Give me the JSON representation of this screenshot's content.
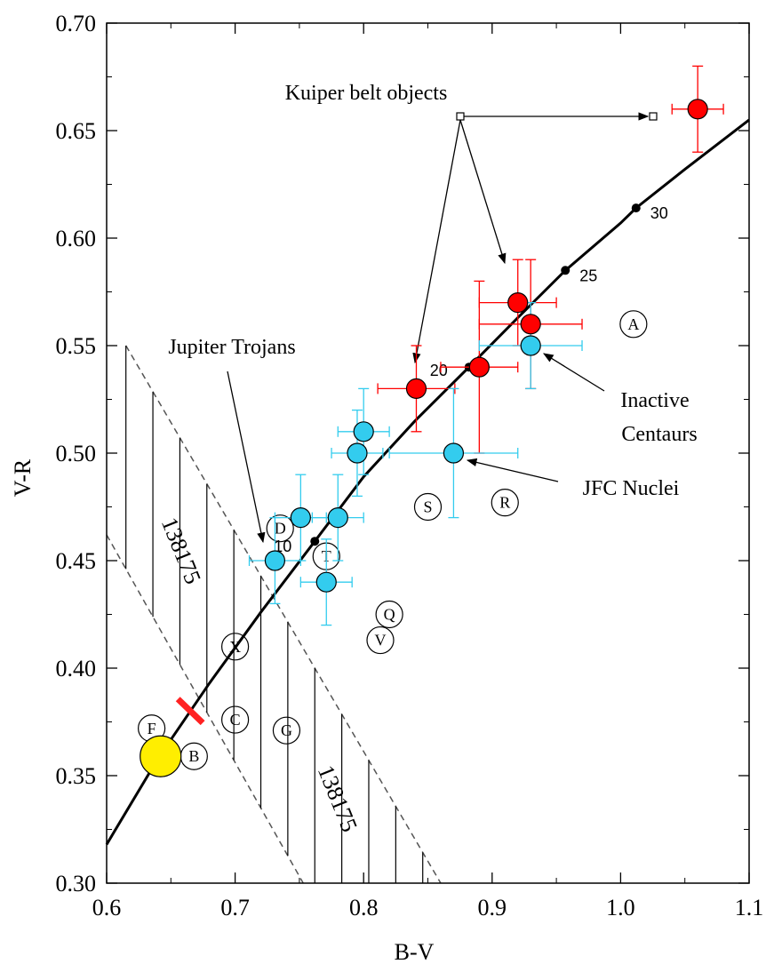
{
  "chart_data": {
    "type": "scatter",
    "xlabel": "B-V",
    "ylabel": "V-R",
    "xlim": [
      0.6,
      1.1
    ],
    "ylim": [
      0.3,
      0.7
    ],
    "x_ticks": [
      "0.6",
      "0.7",
      "0.8",
      "0.9",
      "1.0",
      "1.1"
    ],
    "y_ticks": [
      "0.30",
      "0.35",
      "0.40",
      "0.45",
      "0.50",
      "0.55",
      "0.60",
      "0.65",
      "0.70"
    ],
    "x_tick_values": [
      0.6,
      0.7,
      0.8,
      0.9,
      1.0,
      1.1
    ],
    "y_tick_values": [
      0.3,
      0.35,
      0.4,
      0.45,
      0.5,
      0.55,
      0.6,
      0.65,
      0.7
    ],
    "grid": false,
    "colors": {
      "kbo": "#ff0000",
      "cyan": "#33ccee",
      "sun": "#ffee00",
      "segment": "#ff2222",
      "curve": "#000000"
    },
    "series": [
      {
        "group": "red",
        "points": [
          {
            "x": 0.841,
            "y": 0.53,
            "xerr": 0.03,
            "yerr": 0.02
          },
          {
            "x": 0.89,
            "y": 0.54,
            "xerr": 0.03,
            "yerr": 0.04
          },
          {
            "x": 0.92,
            "y": 0.57,
            "xerr": 0.03,
            "yerr": 0.02
          },
          {
            "x": 0.93,
            "y": 0.56,
            "xerr": 0.04,
            "yerr": 0.03
          },
          {
            "x": 1.06,
            "y": 0.66,
            "xerr": 0.02,
            "yerr": 0.02
          }
        ]
      },
      {
        "group": "cyan",
        "points": [
          {
            "x": 0.731,
            "y": 0.45,
            "xerr": 0.02,
            "yerr": 0.02
          },
          {
            "x": 0.751,
            "y": 0.47,
            "xerr": 0.02,
            "yerr": 0.02
          },
          {
            "x": 0.771,
            "y": 0.44,
            "xerr": 0.02,
            "yerr": 0.02
          },
          {
            "x": 0.78,
            "y": 0.47,
            "xerr": 0.02,
            "yerr": 0.02
          },
          {
            "x": 0.795,
            "y": 0.5,
            "xerr": 0.02,
            "yerr": 0.02
          },
          {
            "x": 0.8,
            "y": 0.51,
            "xerr": 0.02,
            "yerr": 0.02
          },
          {
            "x": 0.87,
            "y": 0.5,
            "xerr": 0.05,
            "yerr": 0.03
          },
          {
            "x": 0.93,
            "y": 0.55,
            "xerr": 0.04,
            "yerr": 0.02
          }
        ]
      }
    ],
    "sun": {
      "x": 0.642,
      "y": 0.359
    },
    "red_segment": [
      {
        "x": 0.661,
        "y": 0.384
      },
      {
        "x": 0.672,
        "y": 0.377
      }
    ],
    "reddening_curve": [
      {
        "x": 0.6,
        "y": 0.318
      },
      {
        "x": 0.64,
        "y": 0.358
      },
      {
        "x": 0.68,
        "y": 0.393
      },
      {
        "x": 0.72,
        "y": 0.426
      },
      {
        "x": 0.762,
        "y": 0.459
      },
      {
        "x": 0.8,
        "y": 0.489
      },
      {
        "x": 0.84,
        "y": 0.515
      },
      {
        "x": 0.882,
        "y": 0.54
      },
      {
        "x": 0.92,
        "y": 0.563
      },
      {
        "x": 0.957,
        "y": 0.585
      },
      {
        "x": 1.0,
        "y": 0.607
      },
      {
        "x": 1.012,
        "y": 0.614
      },
      {
        "x": 1.05,
        "y": 0.632
      },
      {
        "x": 1.1,
        "y": 0.655
      }
    ],
    "track_markers": [
      {
        "label": "10",
        "x": 0.762,
        "y": 0.459
      },
      {
        "label": "20",
        "x": 0.882,
        "y": 0.54
      },
      {
        "label": "25",
        "x": 0.957,
        "y": 0.585
      },
      {
        "label": "30",
        "x": 1.012,
        "y": 0.614
      }
    ],
    "class_labels": [
      {
        "label": "A",
        "x": 1.01,
        "y": 0.56
      },
      {
        "label": "S",
        "x": 0.85,
        "y": 0.475
      },
      {
        "label": "R",
        "x": 0.91,
        "y": 0.477
      },
      {
        "label": "D",
        "x": 0.735,
        "y": 0.465
      },
      {
        "label": "T",
        "x": 0.771,
        "y": 0.452
      },
      {
        "label": "Q",
        "x": 0.82,
        "y": 0.425
      },
      {
        "label": "V",
        "x": 0.813,
        "y": 0.413
      },
      {
        "label": "X",
        "x": 0.7,
        "y": 0.41
      },
      {
        "label": "C",
        "x": 0.7,
        "y": 0.376
      },
      {
        "label": "G",
        "x": 0.74,
        "y": 0.371
      },
      {
        "label": "F",
        "x": 0.635,
        "y": 0.372
      },
      {
        "label": "B",
        "x": 0.668,
        "y": 0.359
      }
    ],
    "region_138175": {
      "upper_line": [
        {
          "x": 0.615,
          "y": 0.55
        },
        {
          "x": 0.86,
          "y": 0.3
        }
      ],
      "lower_line": [
        {
          "x": 0.6,
          "y": 0.462
        },
        {
          "x": 0.753,
          "y": 0.3
        }
      ],
      "label": "138175"
    },
    "annotations": {
      "kuiper": "Kuiper belt objects",
      "trojans": "Jupiter Trojans",
      "inactive_1": "Inactive",
      "inactive_2": "Centaurs",
      "jfc": "JFC Nuclei"
    }
  }
}
